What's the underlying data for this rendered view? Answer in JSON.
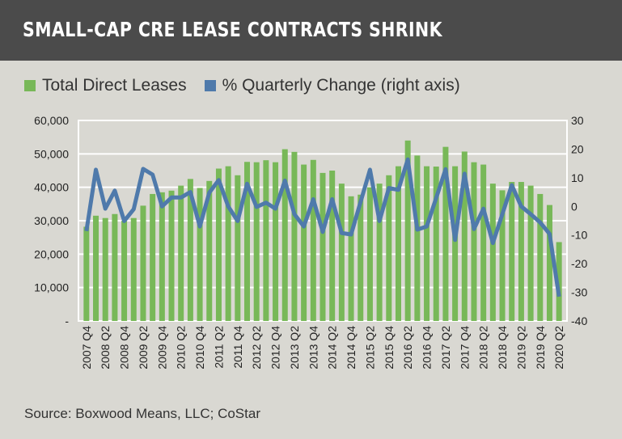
{
  "header": {
    "title": "SMALL-CAP CRE LEASE CONTRACTS SHRINK"
  },
  "source": "Source: Boxwood Means, LLC; CoStar",
  "chart_data": {
    "type": "bar+line",
    "title": "SMALL-CAP CRE LEASE CONTRACTS SHRINK",
    "legend_placement": "top-left",
    "grid": true,
    "colors": {
      "bars": "#78b858",
      "line": "#4f7aab"
    },
    "categories": [
      "2007 Q4",
      "2008 Q1",
      "2008 Q2",
      "2008 Q3",
      "2008 Q4",
      "2009 Q1",
      "2009 Q2",
      "2009 Q3",
      "2009 Q4",
      "2010 Q1",
      "2010 Q2",
      "2010 Q3",
      "2010 Q4",
      "2011 Q1",
      "2011 Q2",
      "2011 Q3",
      "2011 Q4",
      "2012 Q1",
      "2012 Q2",
      "2012 Q3",
      "2012 Q4",
      "2013 Q1",
      "2013 Q2",
      "2013 Q3",
      "2013 Q4",
      "2014 Q1",
      "2014 Q2",
      "2014 Q3",
      "2014 Q4",
      "2015 Q1",
      "2015 Q2",
      "2015 Q3",
      "2015 Q4",
      "2016 Q1",
      "2016 Q2",
      "2016 Q3",
      "2016 Q4",
      "2017 Q1",
      "2017 Q2",
      "2017 Q3",
      "2017 Q4",
      "2018 Q1",
      "2018 Q2",
      "2018 Q3",
      "2018 Q4",
      "2019 Q1",
      "2019 Q2",
      "2019 Q3",
      "2019 Q4",
      "2020 Q1",
      "2020 Q2"
    ],
    "tick_labels": [
      "2007 Q4",
      "2008 Q2",
      "2008 Q4",
      "2009 Q2",
      "2009 Q4",
      "2010 Q2",
      "2010 Q4",
      "2011 Q2",
      "2011 Q4",
      "2012 Q2",
      "2012 Q4",
      "2013 Q2",
      "2013 Q4",
      "2014 Q2",
      "2014 Q4",
      "2015 Q2",
      "2015 Q4",
      "2016 Q2",
      "2016 Q4",
      "2017 Q2",
      "2017 Q4",
      "2018 Q2",
      "2018 Q4",
      "2019 Q2",
      "2019 Q4",
      "2020 Q2"
    ],
    "series": [
      {
        "name": "Total Direct Leases",
        "type": "bar",
        "axis": "left",
        "values": [
          28200,
          31500,
          30800,
          32000,
          30000,
          30800,
          34500,
          38000,
          38500,
          39000,
          40500,
          42500,
          39800,
          41900,
          45600,
          46300,
          43600,
          47600,
          47500,
          48100,
          47500,
          51400,
          50600,
          46800,
          48200,
          44300,
          45000,
          41100,
          37300,
          37800,
          40000,
          41100,
          43600,
          46300,
          54000,
          49500,
          46300,
          46200,
          52100,
          46300,
          50700,
          47500,
          46800,
          41100,
          39100,
          41600,
          41600,
          40500,
          38000,
          34700,
          23600
        ]
      },
      {
        "name": "% Quarterly Change (right axis)",
        "type": "line",
        "axis": "right",
        "values": [
          -8.6,
          12.8,
          -0.8,
          5.5,
          -5.1,
          -1,
          13.1,
          11.1,
          0,
          3.1,
          3.1,
          5,
          -7,
          4.8,
          9.2,
          0,
          -5.1,
          7.9,
          -0.2,
          1.3,
          -0.8,
          9,
          -2.7,
          -7,
          2.5,
          -8.9,
          2.5,
          -9.3,
          -9.8,
          1.5,
          12.8,
          -5.1,
          6.4,
          5.8,
          16.4,
          -8.1,
          -7,
          2.9,
          13,
          -11.7,
          11.4,
          -7.9,
          -0.8,
          -12.8,
          -2.7,
          7.4,
          0,
          -2.7,
          -5.6,
          -9.6,
          -31.5
        ]
      }
    ],
    "left_axis": {
      "range": [
        0,
        60000
      ],
      "ticks": [
        "-",
        "10,000",
        "20,000",
        "30,000",
        "40,000",
        "50,000",
        "60,000"
      ]
    },
    "right_axis": {
      "range": [
        -40,
        30
      ],
      "ticks": [
        "-40",
        "-30",
        "-20",
        "-10",
        "0",
        "10",
        "20",
        "30"
      ]
    }
  }
}
